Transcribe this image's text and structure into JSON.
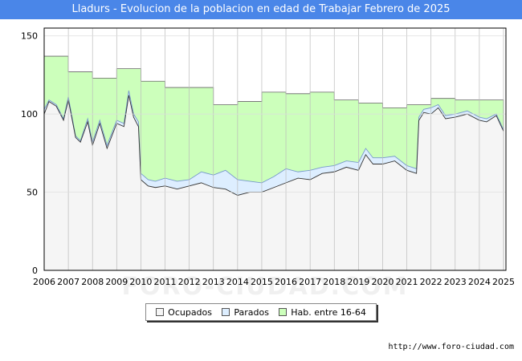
{
  "header": {
    "title": "Lladurs - Evolucion de la poblacion en edad de Trabajar Febrero de 2025"
  },
  "footer": {
    "source": "http://www.foro-ciudad.com",
    "watermark": "FORO-CIUDAD.COM"
  },
  "colors": {
    "title_bg": "#4a86e8",
    "hab_fill": "#ccffbb",
    "hab_line": "#666666",
    "parados_fill": "#ddeeff",
    "parados_line": "#7799cc",
    "ocupados_fill": "#f5f5f5",
    "ocupados_line": "#333333",
    "grid": "#cccccc"
  },
  "chart_data": {
    "type": "area",
    "title": "Lladurs - Evolucion de la poblacion en edad de Trabajar Febrero de 2025",
    "xlabel": "",
    "ylabel": "",
    "xlim": [
      2006,
      2025.1
    ],
    "ylim": [
      0,
      155
    ],
    "yticks": [
      0,
      50,
      100,
      150
    ],
    "xticks": [
      2006,
      2007,
      2008,
      2009,
      2010,
      2011,
      2012,
      2013,
      2014,
      2015,
      2016,
      2017,
      2018,
      2019,
      2020,
      2021,
      2022,
      2023,
      2024,
      2025
    ],
    "grid": true,
    "legend_position": "bottom-center",
    "legend": [
      "Ocupados",
      "Parados",
      "Hab. entre 16-64"
    ],
    "series": [
      {
        "name": "Hab. entre 16-64",
        "step": true,
        "x": [
          2006,
          2007,
          2008,
          2009,
          2010,
          2011,
          2012,
          2013,
          2014,
          2015,
          2016,
          2017,
          2018,
          2019,
          2020,
          2021,
          2022,
          2023,
          2024
        ],
        "values": [
          137,
          127,
          123,
          129,
          121,
          117,
          117,
          106,
          108,
          114,
          113,
          114,
          109,
          107,
          104,
          106,
          110,
          109,
          109
        ],
        "end_x": 2024
      },
      {
        "name": "Parados",
        "x": [
          2006,
          2006.2,
          2006.5,
          2006.8,
          2007,
          2007.3,
          2007.5,
          2007.8,
          2008,
          2008.3,
          2008.6,
          2008.8,
          2009,
          2009.3,
          2009.5,
          2009.7,
          2009.9,
          2010,
          2010.3,
          2010.6,
          2011,
          2011.5,
          2012,
          2012.5,
          2013,
          2013.5,
          2014,
          2014.5,
          2015,
          2015.5,
          2016,
          2016.5,
          2017,
          2017.5,
          2018,
          2018.5,
          2019,
          2019.3,
          2019.6,
          2020,
          2020.5,
          2021,
          2021.4,
          2021.5,
          2021.7,
          2022,
          2022.3,
          2022.6,
          2023,
          2023.5,
          2024,
          2024.3,
          2024.7,
          2025
        ],
        "values": [
          103,
          109,
          106,
          97,
          111,
          86,
          83,
          97,
          82,
          96,
          80,
          88,
          96,
          94,
          115,
          100,
          95,
          62,
          58,
          57,
          59,
          57,
          58,
          63,
          61,
          64,
          58,
          57,
          56,
          60,
          65,
          63,
          64,
          66,
          67,
          70,
          69,
          78,
          72,
          72,
          73,
          67,
          65,
          98,
          103,
          104,
          106,
          99,
          100,
          102,
          98,
          97,
          100,
          90
        ]
      },
      {
        "name": "Ocupados",
        "x": [
          2006,
          2006.2,
          2006.5,
          2006.8,
          2007,
          2007.3,
          2007.5,
          2007.8,
          2008,
          2008.3,
          2008.6,
          2008.8,
          2009,
          2009.3,
          2009.5,
          2009.7,
          2009.9,
          2010,
          2010.3,
          2010.6,
          2011,
          2011.5,
          2012,
          2012.5,
          2013,
          2013.5,
          2014,
          2014.5,
          2015,
          2015.5,
          2016,
          2016.5,
          2017,
          2017.5,
          2018,
          2018.5,
          2019,
          2019.3,
          2019.6,
          2020,
          2020.5,
          2021,
          2021.4,
          2021.5,
          2021.7,
          2022,
          2022.3,
          2022.6,
          2023,
          2023.5,
          2024,
          2024.3,
          2024.7,
          2025
        ],
        "values": [
          100,
          108,
          105,
          96,
          109,
          85,
          82,
          95,
          80,
          94,
          78,
          86,
          94,
          92,
          112,
          98,
          92,
          58,
          54,
          53,
          54,
          52,
          54,
          56,
          53,
          52,
          48,
          50,
          50,
          53,
          56,
          59,
          58,
          62,
          63,
          66,
          64,
          74,
          68,
          68,
          70,
          64,
          62,
          96,
          101,
          100,
          104,
          97,
          98,
          100,
          96,
          95,
          99,
          89
        ]
      }
    ]
  }
}
